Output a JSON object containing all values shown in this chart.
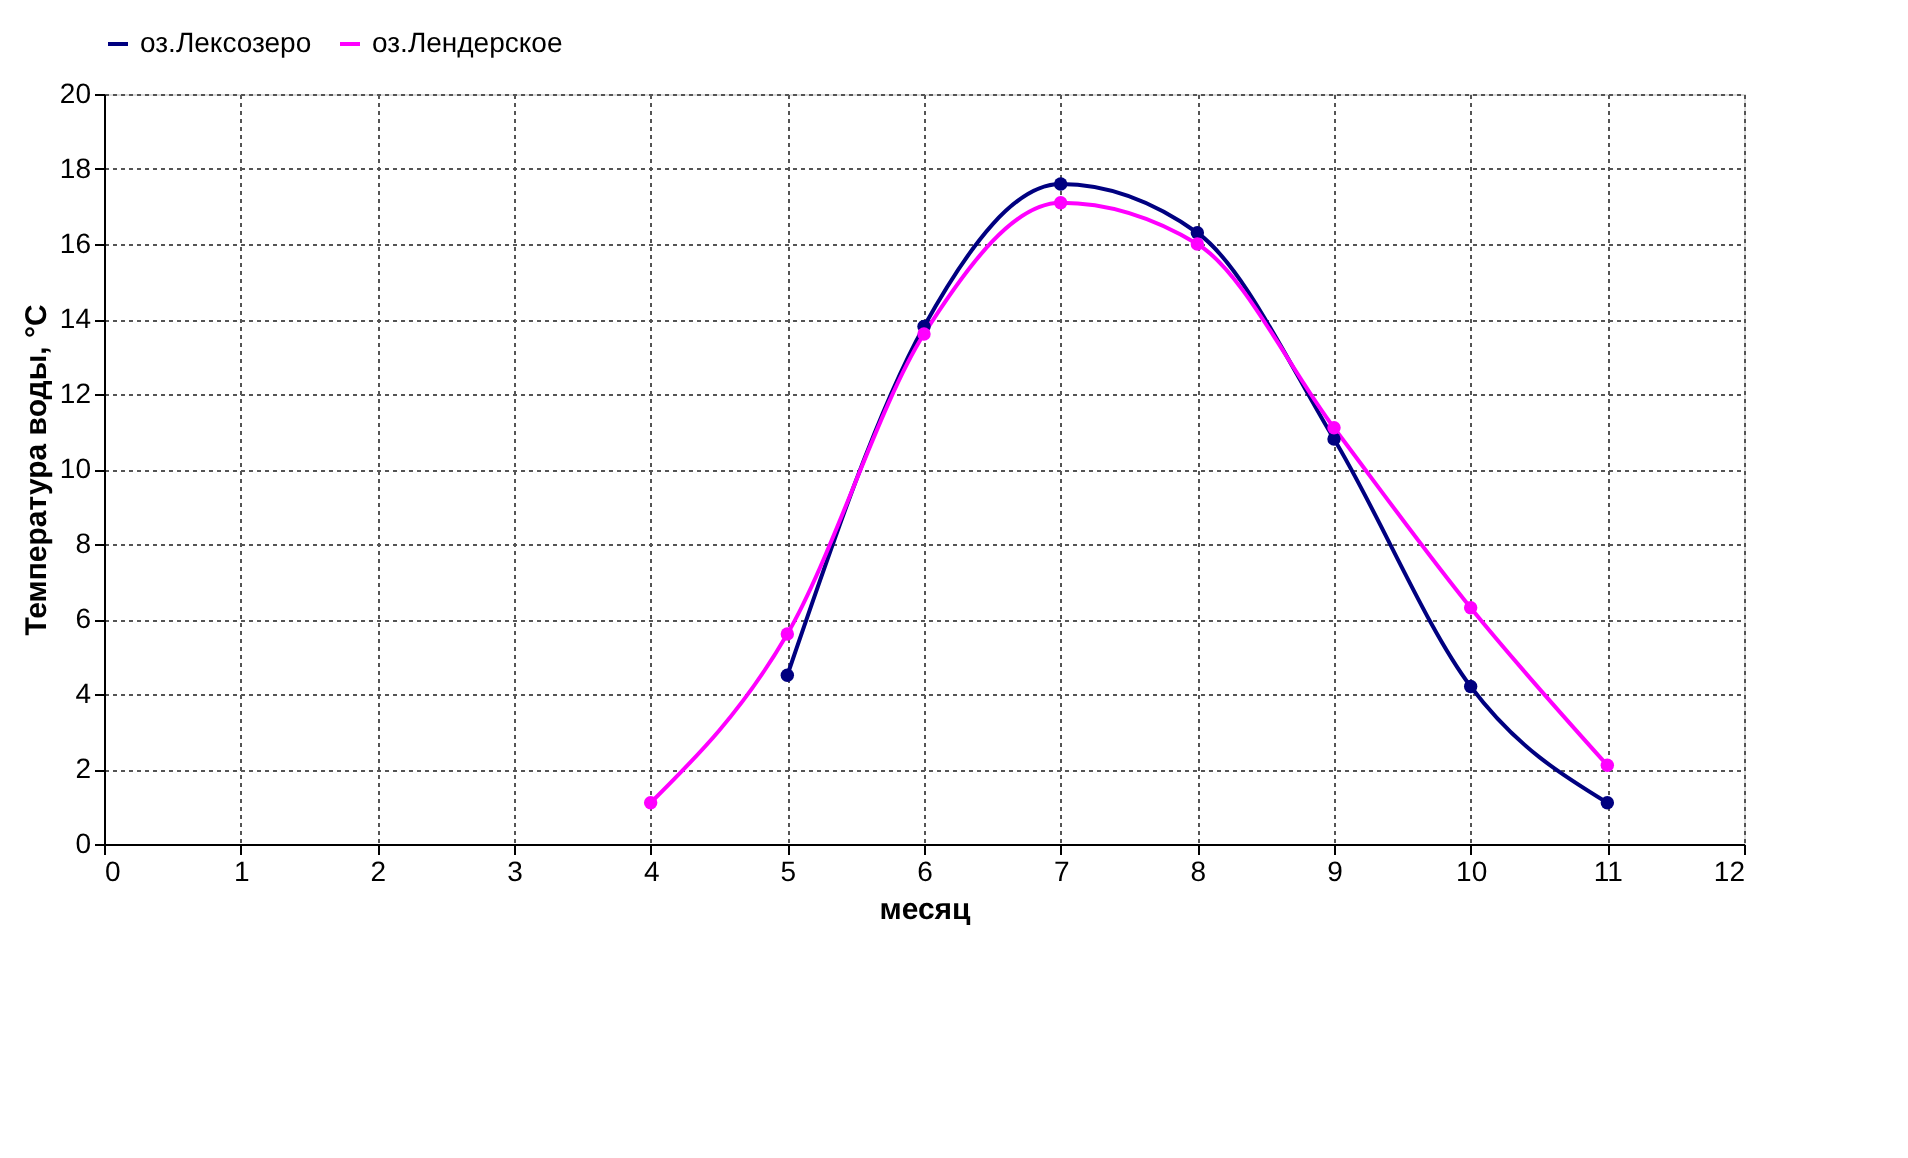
{
  "chart_data": {
    "type": "line",
    "xlabel": "месяц",
    "ylabel": "Температура воды, °C",
    "xlim": [
      0,
      12
    ],
    "xticks": [
      0,
      1,
      2,
      3,
      4,
      5,
      6,
      7,
      8,
      9,
      10,
      11,
      12
    ],
    "ylim": [
      0,
      20
    ],
    "yticks": [
      0,
      2,
      4,
      6,
      8,
      10,
      12,
      14,
      16,
      18,
      20
    ],
    "grid": true,
    "legend": "top",
    "marker": "circle",
    "line_style": "solid",
    "series": [
      {
        "name": "оз.Лексозеро",
        "color": "#000080",
        "x": [
          5,
          6,
          7,
          8,
          9,
          10,
          11
        ],
        "values": [
          4.5,
          13.8,
          17.6,
          16.3,
          10.8,
          4.2,
          1.1
        ]
      },
      {
        "name": "оз.Лендерское",
        "color": "#ff00ff",
        "x": [
          4,
          5,
          6,
          7,
          8,
          9,
          10,
          11
        ],
        "values": [
          1.1,
          5.6,
          13.6,
          17.1,
          16.0,
          11.1,
          6.3,
          2.1
        ]
      }
    ]
  }
}
